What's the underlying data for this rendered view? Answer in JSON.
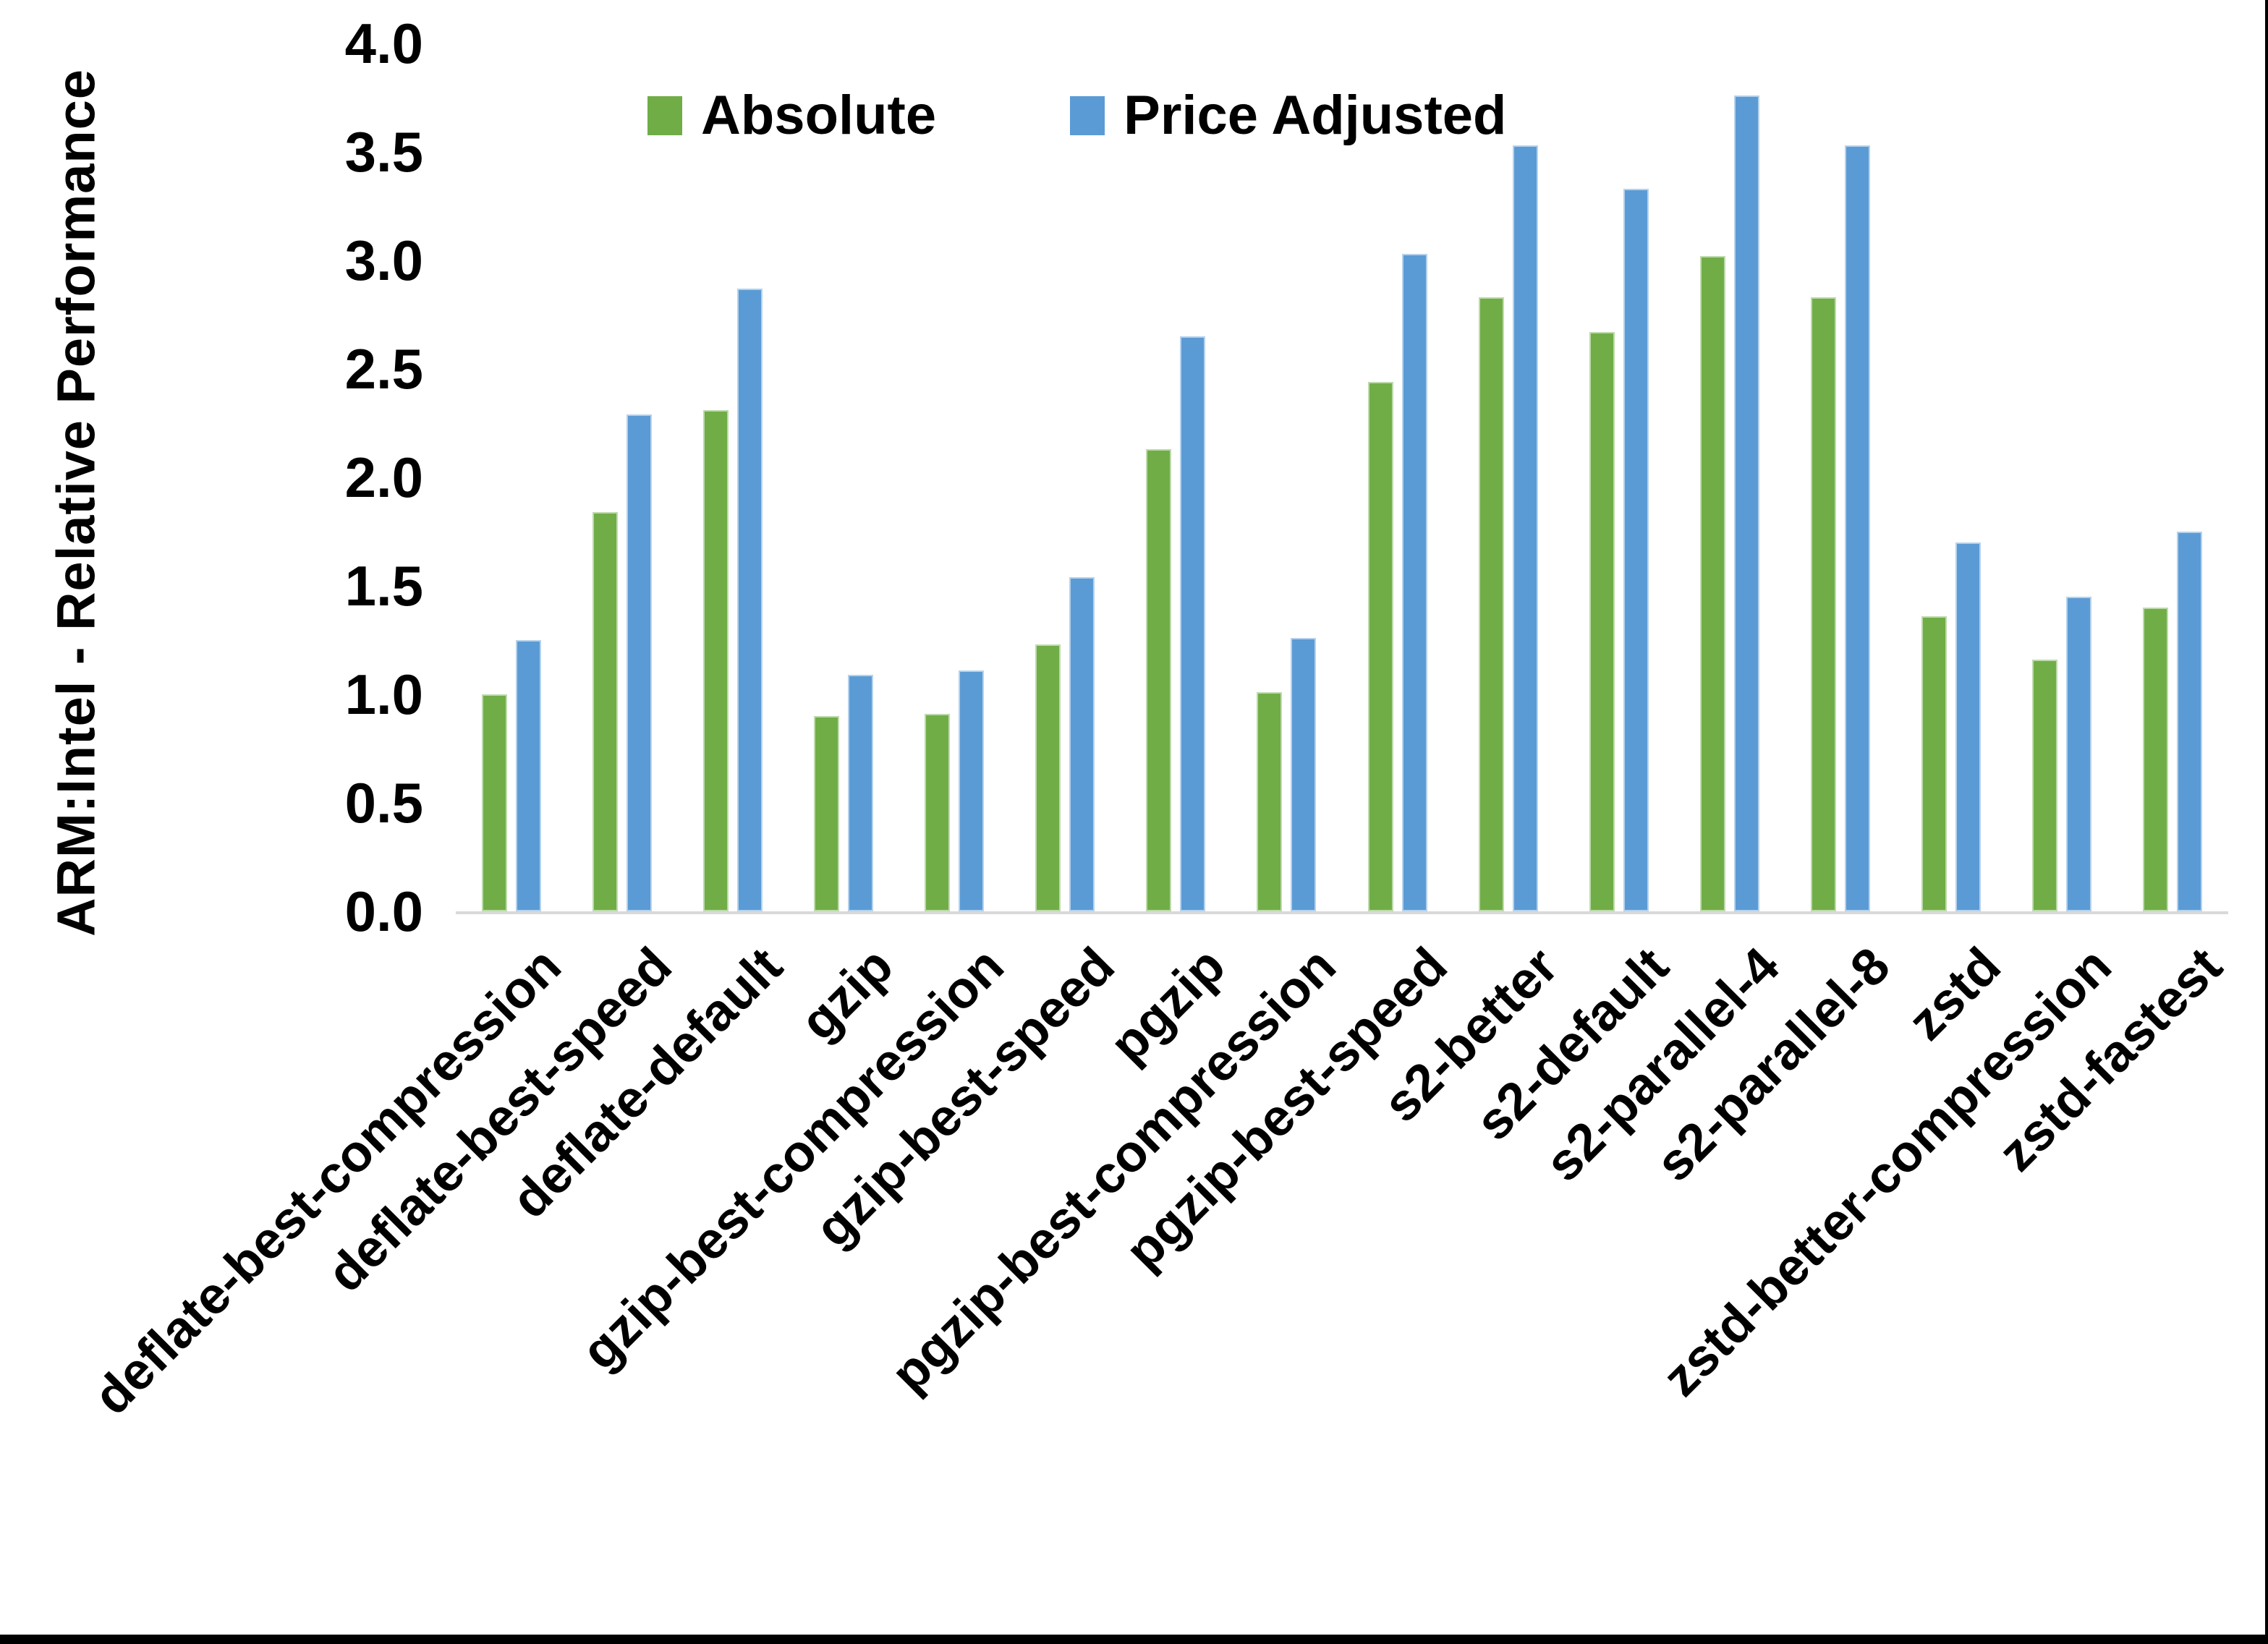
{
  "chart_data": {
    "type": "bar",
    "title": "",
    "ylabel": "ARM:Intel - Relative Performance",
    "xlabel": "",
    "ylim": [
      0.0,
      4.0
    ],
    "ytick_step": 0.5,
    "yticks": [
      "0.0",
      "0.5",
      "1.0",
      "1.5",
      "2.0",
      "2.5",
      "3.0",
      "3.5",
      "4.0"
    ],
    "grid": false,
    "legend_position": "top",
    "axis_line_color": "#D9D9D9",
    "categories": [
      "deflate-best-compression",
      "deflate-best-speed",
      "deflate-default",
      "gzip",
      "gzip-best-compression",
      "gzip-best-speed",
      "pgzip",
      "pgzip-best-compression",
      "pgzip-best-speed",
      "s2-better",
      "s2-default",
      "s2-parallel-4",
      "s2-parallel-8",
      "zstd",
      "zstd-better-compression",
      "zstd-fastest"
    ],
    "series": [
      {
        "name": "Absolute",
        "color": "#70AD47",
        "values": [
          1.0,
          1.84,
          2.31,
          0.9,
          0.91,
          1.23,
          2.13,
          1.01,
          2.44,
          2.83,
          2.67,
          3.02,
          2.83,
          1.36,
          1.16,
          1.4
        ]
      },
      {
        "name": "Price Adjusted",
        "color": "#5B9BD5",
        "values": [
          1.25,
          2.29,
          2.87,
          1.09,
          1.11,
          1.54,
          2.65,
          1.26,
          3.03,
          3.53,
          3.33,
          3.76,
          3.53,
          1.7,
          1.45,
          1.75
        ]
      }
    ]
  },
  "frame": {
    "bottom_bar_color": "#000000",
    "right_edge_color": "#000000"
  }
}
